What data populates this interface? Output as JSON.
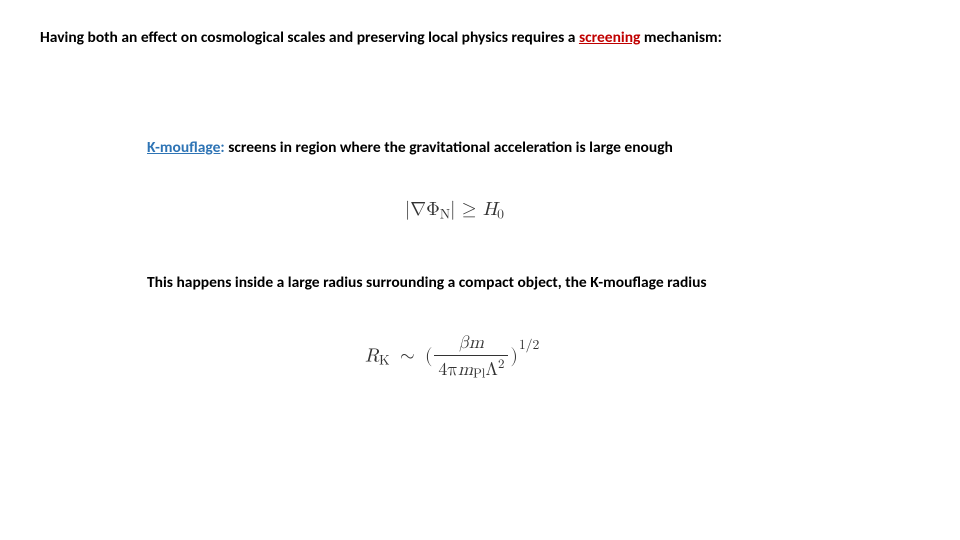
{
  "colors": {
    "text": "#000000",
    "accent_red": "#c00000",
    "accent_blue": "#2e74b5",
    "equation": "#333333",
    "background": "#ffffff"
  },
  "typography": {
    "body_font": "Calibri",
    "body_size_pt": 12,
    "body_weight": 700,
    "equation_font": "Cambria Math",
    "equation_size_pt": 14
  },
  "line1": {
    "pre": "Having both an effect on cosmological scales and preserving local physics requires a ",
    "screening": "screening",
    "post": " mechanism:"
  },
  "line2": {
    "term": "K-mouflage",
    "colon": ":",
    "rest": "  screens in region where the gravitational acceleration is large enough"
  },
  "eq1": {
    "abs_open": "|",
    "nabla": "∇",
    "phi": "Φ",
    "phi_sub": "N",
    "abs_close": "|",
    "op": " ≥ ",
    "H": "H",
    "H_sub": "0"
  },
  "line3": {
    "text": "This happens inside a large radius surrounding a compact object, the K-mouflage radius"
  },
  "eq2": {
    "R": "R",
    "R_sub": "K",
    "sim": "∼",
    "lpar": "(",
    "num_beta": "β",
    "num_m": "m",
    "den_4pi": "4π",
    "den_m": "m",
    "den_pl": "Pl",
    "den_Lambda": "Λ",
    "den_sq": "2",
    "rpar": ")",
    "exp": "1/2"
  }
}
